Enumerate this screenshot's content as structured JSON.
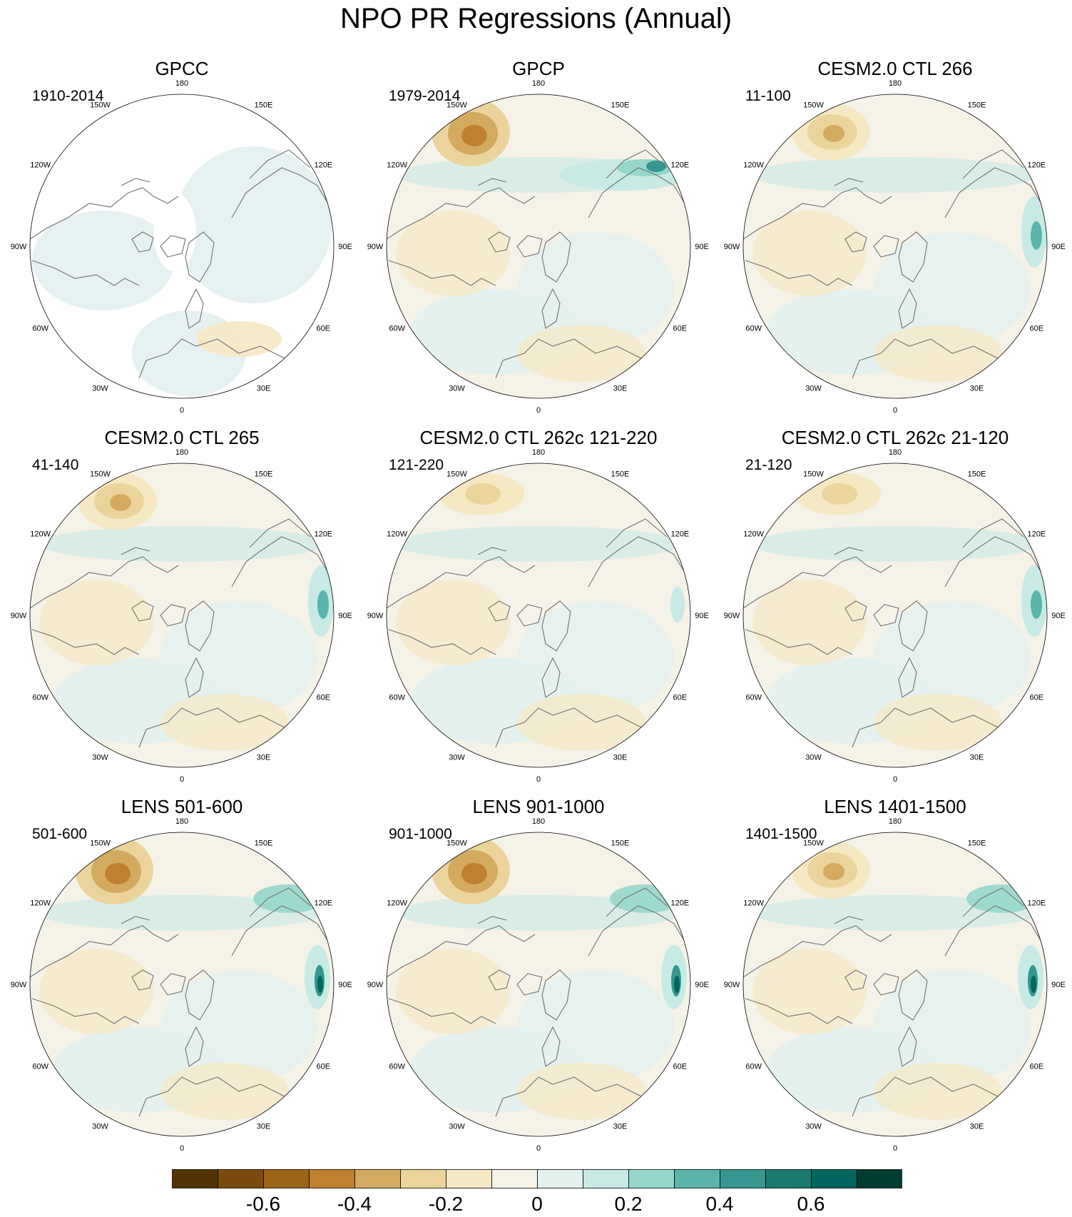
{
  "title": "NPO PR Regressions (Annual)",
  "lon_labels": [
    "180",
    "150E",
    "120E",
    "90E",
    "60E",
    "30E",
    "0",
    "30W",
    "60W",
    "90W",
    "120W",
    "150W"
  ],
  "panels": [
    {
      "title": "GPCC",
      "period": "1910-2014",
      "masked": true,
      "blob": "weak",
      "east": "none"
    },
    {
      "title": "GPCP",
      "period": "1979-2014",
      "masked": false,
      "blob": "strong",
      "east": "ne"
    },
    {
      "title": "CESM2.0 CTL 266",
      "period": "11-100",
      "masked": false,
      "blob": "medium",
      "east": "e"
    },
    {
      "title": "CESM2.0 CTL 265",
      "period": "41-140",
      "masked": false,
      "blob": "medium",
      "east": "e"
    },
    {
      "title": "CESM2.0 CTL 262c 121-220",
      "period": "121-220",
      "masked": false,
      "blob": "weak",
      "east": "weak"
    },
    {
      "title": "CESM2.0 CTL 262c 21-120",
      "period": "21-120",
      "masked": false,
      "blob": "weak",
      "east": "e"
    },
    {
      "title": "LENS 501-600",
      "period": "501-600",
      "masked": false,
      "blob": "strong",
      "east": "strong"
    },
    {
      "title": "LENS 901-1000",
      "period": "901-1000",
      "masked": false,
      "blob": "strong",
      "east": "strong"
    },
    {
      "title": "LENS 1401-1500",
      "period": "1401-1500",
      "masked": false,
      "blob": "medium",
      "east": "strong"
    }
  ],
  "colorbar": {
    "colors": [
      "#543005",
      "#7a4a0e",
      "#9c6417",
      "#bf812d",
      "#d2ab60",
      "#ebd49c",
      "#f6e8c3",
      "#f5f2e8",
      "#e3f1ef",
      "#c7eae5",
      "#97d6cb",
      "#5ab4ac",
      "#35978f",
      "#1a7a70",
      "#01665e",
      "#003c30"
    ],
    "tick_values": [
      -0.6,
      -0.4,
      -0.2,
      0,
      0.2,
      0.4,
      0.6
    ],
    "tick_labels": [
      "-0.6",
      "-0.4",
      "-0.2",
      "0",
      "0.2",
      "0.4",
      "0.6"
    ]
  }
}
